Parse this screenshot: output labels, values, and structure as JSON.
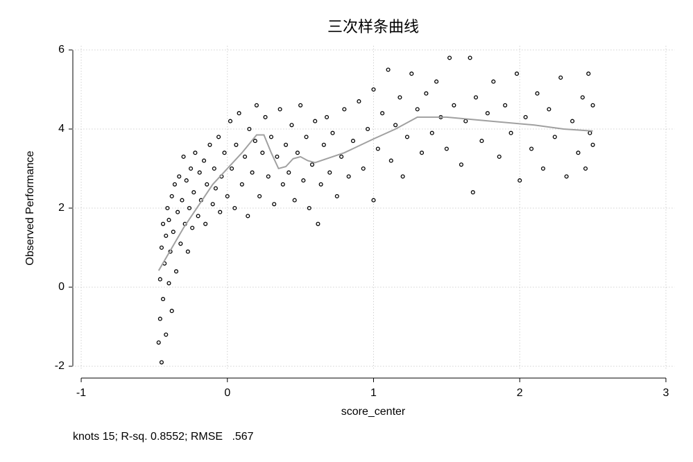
{
  "chart_data": {
    "type": "scatter",
    "title": "三次样条曲线",
    "x_label": "score_center",
    "y_label": "Observed Performance",
    "note": "knots 15; R-sq. 0.8552; RMSE   .567",
    "xlim": [
      -1.06,
      3.06
    ],
    "ylim": [
      -2.1,
      6.1
    ],
    "xticks": [
      -1,
      0,
      1,
      2,
      3
    ],
    "yticks": [
      -2,
      0,
      2,
      4,
      6
    ],
    "grid": true,
    "series": [
      {
        "kind": "scatter",
        "color": "#000000",
        "x": [
          -0.47,
          -0.46,
          -0.46,
          -0.45,
          -0.45,
          -0.44,
          -0.44,
          -0.43,
          -0.42,
          -0.42,
          -0.41,
          -0.4,
          -0.4,
          -0.39,
          -0.38,
          -0.38,
          -0.37,
          -0.36,
          -0.35,
          -0.34,
          -0.33,
          -0.32,
          -0.31,
          -0.3,
          -0.29,
          -0.28,
          -0.27,
          -0.26,
          -0.25,
          -0.24,
          -0.23,
          -0.22,
          -0.2,
          -0.19,
          -0.18,
          -0.16,
          -0.15,
          -0.14,
          -0.12,
          -0.1,
          -0.09,
          -0.08,
          -0.06,
          -0.05,
          -0.04,
          -0.02,
          0.0,
          0.02,
          0.03,
          0.05,
          0.06,
          0.08,
          0.1,
          0.12,
          0.14,
          0.15,
          0.17,
          0.19,
          0.2,
          0.22,
          0.24,
          0.26,
          0.28,
          0.3,
          0.32,
          0.34,
          0.36,
          0.38,
          0.4,
          0.42,
          0.44,
          0.46,
          0.48,
          0.5,
          0.52,
          0.54,
          0.56,
          0.58,
          0.6,
          0.62,
          0.64,
          0.66,
          0.68,
          0.7,
          0.72,
          0.75,
          0.78,
          0.8,
          0.83,
          0.86,
          0.9,
          0.93,
          0.96,
          1.0,
          1.0,
          1.03,
          1.06,
          1.1,
          1.12,
          1.15,
          1.18,
          1.2,
          1.23,
          1.26,
          1.3,
          1.33,
          1.36,
          1.4,
          1.43,
          1.46,
          1.5,
          1.52,
          1.55,
          1.6,
          1.63,
          1.66,
          1.68,
          1.7,
          1.74,
          1.78,
          1.82,
          1.86,
          1.9,
          1.94,
          1.98,
          2.0,
          2.04,
          2.08,
          2.12,
          2.16,
          2.2,
          2.24,
          2.28,
          2.32,
          2.36,
          2.4,
          2.43,
          2.45,
          2.47,
          2.48,
          2.5,
          2.5
        ],
        "values": [
          -1.4,
          -0.8,
          0.2,
          1.0,
          -1.9,
          1.6,
          -0.3,
          0.6,
          1.3,
          -1.2,
          2.0,
          0.1,
          1.7,
          0.9,
          2.3,
          -0.6,
          1.4,
          2.6,
          0.4,
          1.9,
          2.8,
          1.1,
          2.2,
          3.3,
          1.6,
          2.7,
          0.9,
          2.0,
          3.0,
          1.5,
          2.4,
          3.4,
          1.8,
          2.9,
          2.2,
          3.2,
          1.6,
          2.6,
          3.6,
          2.1,
          3.0,
          2.5,
          3.8,
          1.9,
          2.8,
          3.4,
          2.3,
          4.2,
          3.0,
          2.0,
          3.6,
          4.4,
          2.6,
          3.3,
          1.8,
          4.0,
          2.9,
          3.7,
          4.6,
          2.3,
          3.4,
          4.3,
          2.8,
          3.8,
          2.1,
          3.3,
          4.5,
          2.6,
          3.6,
          2.9,
          4.1,
          2.2,
          3.4,
          4.6,
          2.7,
          3.8,
          2.0,
          3.1,
          4.2,
          1.6,
          2.6,
          3.6,
          4.3,
          2.9,
          3.9,
          2.3,
          3.3,
          4.5,
          2.8,
          3.7,
          4.7,
          3.0,
          4.0,
          5.0,
          2.2,
          3.5,
          4.4,
          5.5,
          3.2,
          4.1,
          4.8,
          2.8,
          3.8,
          5.4,
          4.5,
          3.4,
          4.9,
          3.9,
          5.2,
          4.3,
          3.5,
          5.8,
          4.6,
          3.1,
          4.2,
          5.8,
          2.4,
          4.8,
          3.7,
          4.4,
          5.2,
          3.3,
          4.6,
          3.9,
          5.4,
          2.7,
          4.3,
          3.5,
          4.9,
          3.0,
          4.5,
          3.8,
          5.3,
          2.8,
          4.2,
          3.4,
          4.8,
          3.0,
          5.4,
          3.9,
          4.6,
          3.6
        ]
      },
      {
        "kind": "line",
        "color": "#a0a0a0",
        "x": [
          -0.47,
          -0.3,
          -0.1,
          0.1,
          0.2,
          0.25,
          0.3,
          0.35,
          0.4,
          0.45,
          0.5,
          0.55,
          0.6,
          0.8,
          1.0,
          1.15,
          1.3,
          1.5,
          1.8,
          2.1,
          2.3,
          2.5
        ],
        "values": [
          0.42,
          1.5,
          2.6,
          3.4,
          3.85,
          3.85,
          3.4,
          3.0,
          3.05,
          3.25,
          3.3,
          3.2,
          3.15,
          3.4,
          3.75,
          4.0,
          4.3,
          4.3,
          4.2,
          4.1,
          4.0,
          3.95
        ]
      }
    ]
  }
}
